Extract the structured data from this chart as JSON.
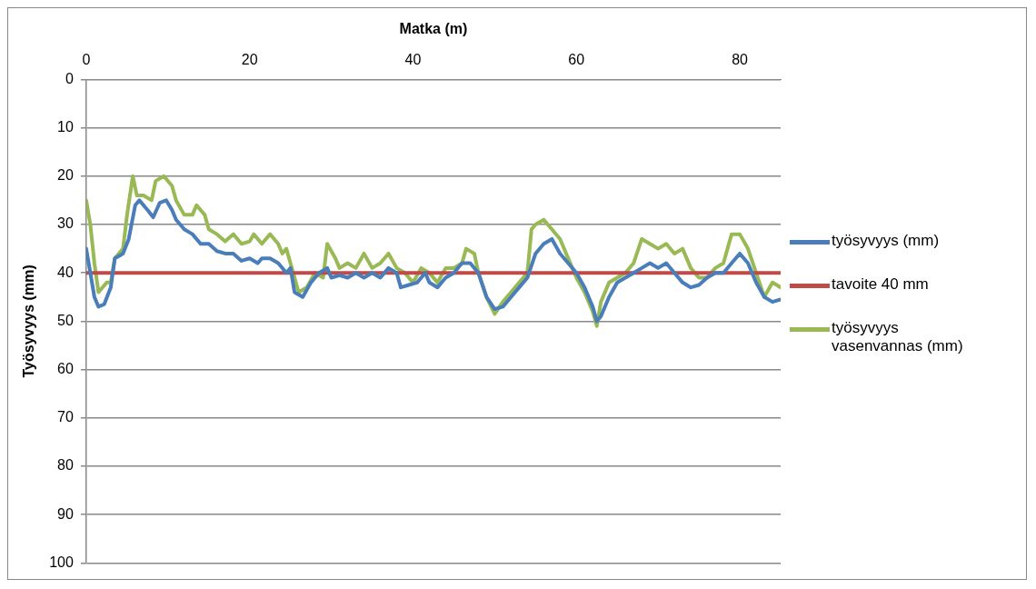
{
  "chart_data": {
    "type": "line",
    "xlabel": "Matka (m)",
    "ylabel": "Työsyvyys (mm)",
    "xlim": [
      0,
      85
    ],
    "xticks": [
      0,
      20,
      40,
      60,
      80
    ],
    "ylim": [
      100,
      0
    ],
    "yticks": [
      0,
      10,
      20,
      30,
      40,
      50,
      60,
      70,
      80,
      90,
      100
    ],
    "grid": "y",
    "legend": "right",
    "marker": "none",
    "line_style": "solid",
    "series": [
      {
        "name": "työsyvyys (mm)",
        "color": "#4a7ebb",
        "x": [
          0,
          0.5,
          1,
          1.5,
          2.2,
          3,
          3.5,
          4.5,
          5.2,
          6,
          6.5,
          7.5,
          8.2,
          9,
          9.8,
          10.5,
          11,
          12,
          13,
          14,
          15,
          16,
          17,
          18,
          19,
          20,
          21,
          21.5,
          22.5,
          23.5,
          24.5,
          25,
          25.5,
          26.5,
          27.5,
          28.5,
          29.5,
          30,
          31,
          32,
          33,
          34,
          35,
          36,
          37,
          38,
          38.5,
          39.5,
          40.5,
          41.5,
          42,
          43,
          44,
          45,
          46,
          47,
          48,
          49,
          50,
          51,
          52,
          53,
          54,
          55,
          56,
          57,
          58,
          59,
          60,
          61,
          62,
          62.5,
          63,
          64,
          65,
          66,
          67,
          68,
          69,
          70,
          71,
          72,
          73,
          74,
          75,
          76,
          77,
          78,
          79,
          80,
          81,
          82,
          83,
          84,
          85
        ],
        "values": [
          35,
          40,
          45,
          47,
          46.5,
          43,
          37,
          36,
          33,
          26,
          25,
          27,
          28.5,
          25.5,
          25,
          27,
          29,
          31,
          32,
          34,
          34,
          35.5,
          36,
          36,
          37.5,
          37,
          38,
          37,
          37,
          38,
          40,
          39,
          44,
          45,
          42,
          40,
          39,
          41,
          40.5,
          41,
          40,
          41,
          40,
          41,
          39,
          40,
          43,
          42.5,
          42,
          40,
          42,
          43,
          41,
          40,
          38,
          38,
          40,
          45,
          47.5,
          47,
          45,
          43,
          41,
          36,
          34,
          33,
          36,
          38,
          40,
          43,
          47,
          50,
          49,
          45,
          42,
          41,
          40,
          39,
          38,
          39,
          38,
          40,
          42,
          43,
          42.5,
          41,
          40,
          40,
          38,
          36,
          38,
          42,
          45,
          46,
          45.5
        ]
      },
      {
        "name": "tavoite 40 mm",
        "color": "#be4b48",
        "x": [
          0,
          85
        ],
        "values": [
          40,
          40
        ]
      },
      {
        "name": "työsyvyys vasenvannas (mm)",
        "color": "#98b954",
        "x": [
          0,
          0.5,
          1,
          1.5,
          2.5,
          3,
          3.5,
          4.5,
          5,
          5.7,
          6.2,
          7,
          8,
          8.5,
          9.5,
          10.5,
          11,
          12,
          13,
          13.5,
          14.5,
          15,
          16,
          17,
          18,
          19,
          20,
          20.5,
          21.5,
          22.5,
          23.5,
          24,
          24.5,
          25,
          26,
          27,
          28,
          29,
          29.5,
          30.5,
          31,
          32,
          33,
          34,
          35,
          36,
          37,
          38,
          39,
          40,
          41,
          42,
          43,
          44,
          45,
          46,
          46.5,
          47.5,
          48,
          49,
          50,
          51,
          52,
          53,
          54,
          54.5,
          55,
          56,
          57,
          58,
          59,
          60,
          61,
          62,
          62.5,
          63,
          64,
          65,
          66,
          67,
          68,
          69,
          70,
          71,
          72,
          73,
          74,
          75,
          76,
          77,
          78,
          79,
          80,
          81,
          82,
          83,
          84,
          85
        ],
        "values": [
          25,
          30,
          38,
          44,
          42,
          42,
          37,
          35,
          28,
          20,
          24,
          24,
          25,
          21,
          20,
          22,
          25,
          28,
          28,
          26,
          28,
          31,
          32,
          33.5,
          32,
          34,
          33.5,
          32,
          34,
          32,
          34,
          36,
          35,
          38,
          44,
          43,
          40,
          41,
          34,
          37,
          39,
          38,
          39,
          36,
          39,
          38,
          36,
          39,
          40,
          42,
          39,
          40,
          42,
          39,
          39,
          38,
          35,
          36,
          40,
          45,
          48.5,
          46,
          44,
          42,
          40,
          31,
          30,
          29,
          31,
          33,
          37,
          41,
          44,
          48,
          51,
          46,
          42,
          41,
          40,
          38,
          33,
          34,
          35,
          34,
          36,
          35,
          39,
          41,
          41,
          39,
          38,
          32,
          32,
          35,
          40,
          45,
          42,
          43
        ]
      }
    ]
  }
}
